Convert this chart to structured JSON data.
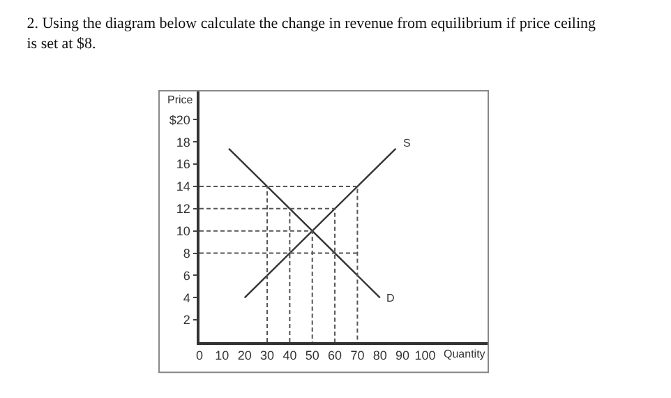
{
  "chart_data": {
    "type": "line",
    "title": "2. Using the diagram below calculate the change in revenue from equilibrium if price ceiling is set at $8.",
    "xlabel": "Quantity",
    "ylabel": "Price",
    "xlim": [
      0,
      128
    ],
    "ylim": [
      0,
      22.6
    ],
    "xticks": [
      0,
      10,
      20,
      30,
      40,
      50,
      60,
      70,
      80,
      90,
      100
    ],
    "yticks": [
      2,
      4,
      6,
      8,
      10,
      12,
      14,
      16,
      18,
      {
        "value": 20,
        "label": "$20"
      }
    ],
    "marker": "none",
    "series": [
      {
        "name": "S",
        "color": "#333333",
        "line_style": "solid",
        "x": [
          20,
          87
        ],
        "values": [
          4,
          17.4
        ]
      },
      {
        "name": "D",
        "color": "#333333",
        "line_style": "solid",
        "x": [
          13,
          80
        ],
        "values": [
          17.4,
          4
        ]
      },
      {
        "color": "#555555",
        "line_style": "dashed",
        "x": [
          0,
          70,
          70
        ],
        "values": [
          14,
          14,
          0
        ]
      },
      {
        "color": "#555555",
        "line_style": "dashed",
        "x": [
          0,
          60,
          60
        ],
        "values": [
          12,
          12,
          0
        ]
      },
      {
        "color": "#555555",
        "line_style": "dashed",
        "x": [
          0,
          50,
          50
        ],
        "values": [
          10,
          10,
          0
        ]
      },
      {
        "color": "#555555",
        "line_style": "dashed",
        "x": [
          0,
          70
        ],
        "values": [
          8,
          8
        ]
      },
      {
        "color": "#555555",
        "line_style": "dashed",
        "x": [
          30,
          30
        ],
        "values": [
          0,
          14
        ]
      },
      {
        "color": "#555555",
        "line_style": "dashed",
        "x": [
          40,
          40
        ],
        "values": [
          0,
          12
        ]
      }
    ]
  }
}
